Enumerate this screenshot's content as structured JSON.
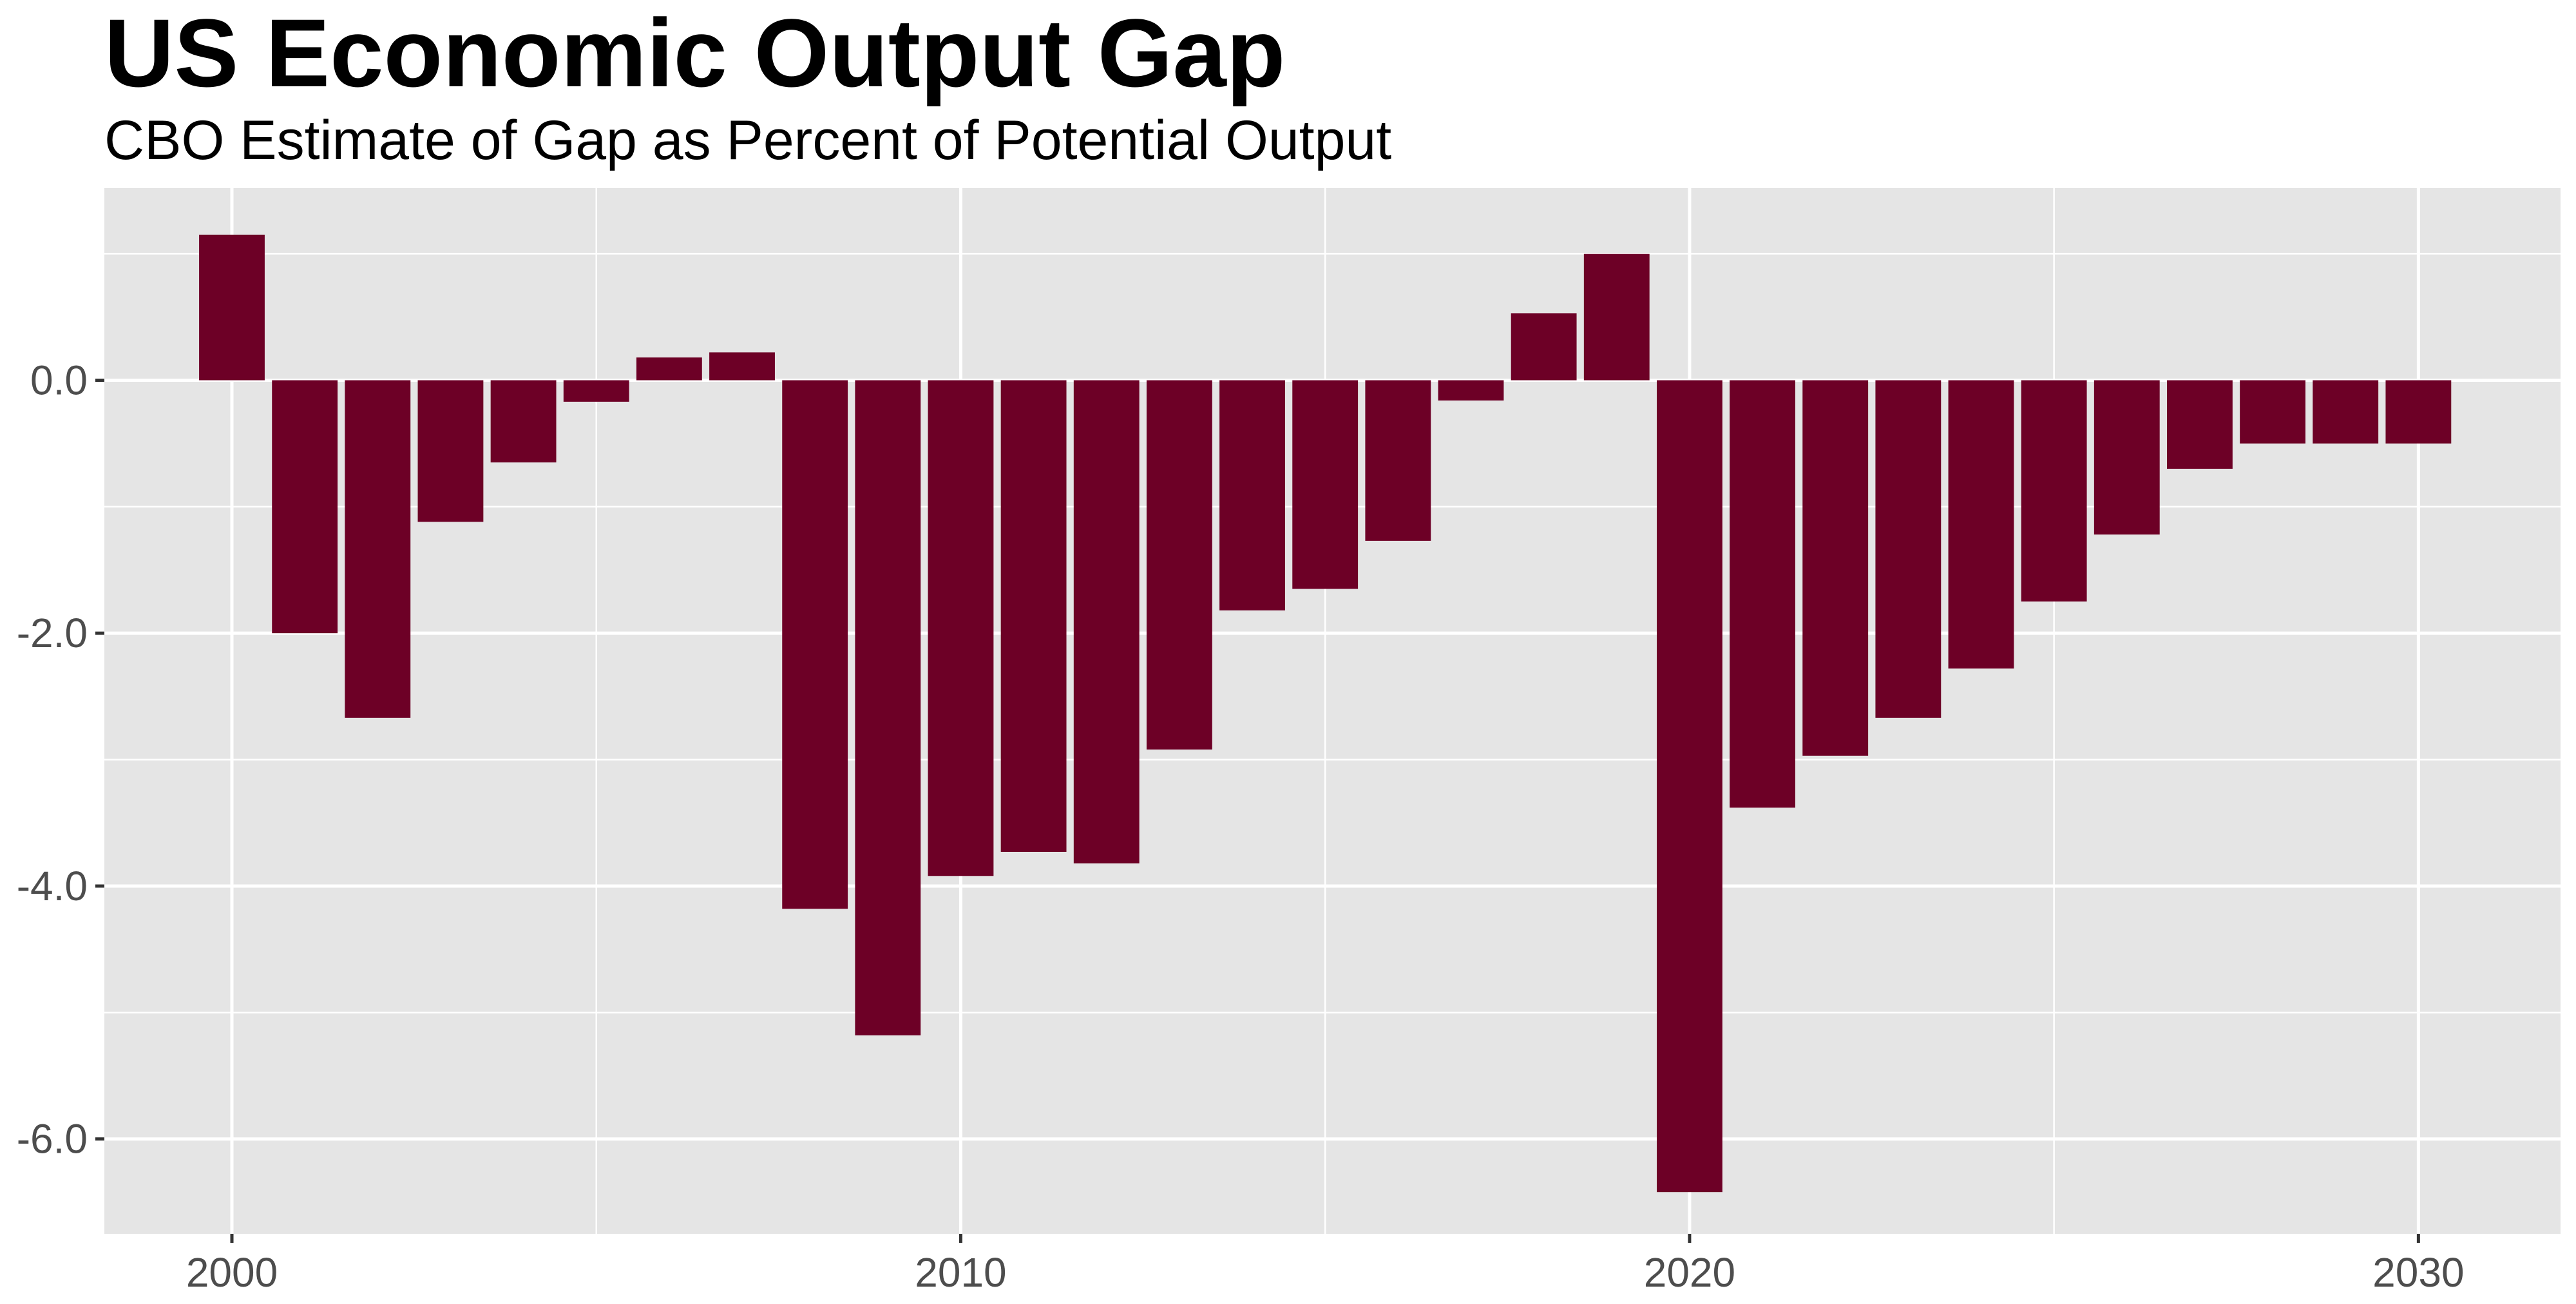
{
  "chart_data": {
    "type": "bar",
    "title": "US Economic Output Gap",
    "subtitle": "CBO Estimate of Gap as Percent of Potential Output",
    "xlabel": "",
    "ylabel": "",
    "x": [
      2000,
      2001,
      2002,
      2003,
      2004,
      2005,
      2006,
      2007,
      2008,
      2009,
      2010,
      2011,
      2012,
      2013,
      2014,
      2015,
      2016,
      2017,
      2018,
      2019,
      2020,
      2021,
      2022,
      2023,
      2024,
      2025,
      2026,
      2027,
      2028,
      2029,
      2030
    ],
    "values": [
      1.15,
      -2.0,
      -2.67,
      -1.12,
      -0.65,
      -0.17,
      0.18,
      0.22,
      -4.18,
      -5.18,
      -3.92,
      -3.73,
      -3.82,
      -2.92,
      -1.82,
      -1.65,
      -1.27,
      -0.16,
      0.53,
      1.0,
      -6.42,
      -3.38,
      -2.97,
      -2.67,
      -2.28,
      -1.75,
      -1.22,
      -0.7,
      -0.5,
      -0.5,
      -0.5
    ],
    "xlim": [
      1998.25,
      2031.95
    ],
    "ylim": [
      -6.75,
      1.52
    ],
    "x_ticks": [
      "2000",
      "2010",
      "2020",
      "2030"
    ],
    "y_ticks": [
      "0.0",
      "-2.0",
      "-4.0",
      "-6.0"
    ],
    "bar_color": "#6d0026",
    "panel_color": "#e5e5e5",
    "grid": true,
    "legend": "none"
  }
}
